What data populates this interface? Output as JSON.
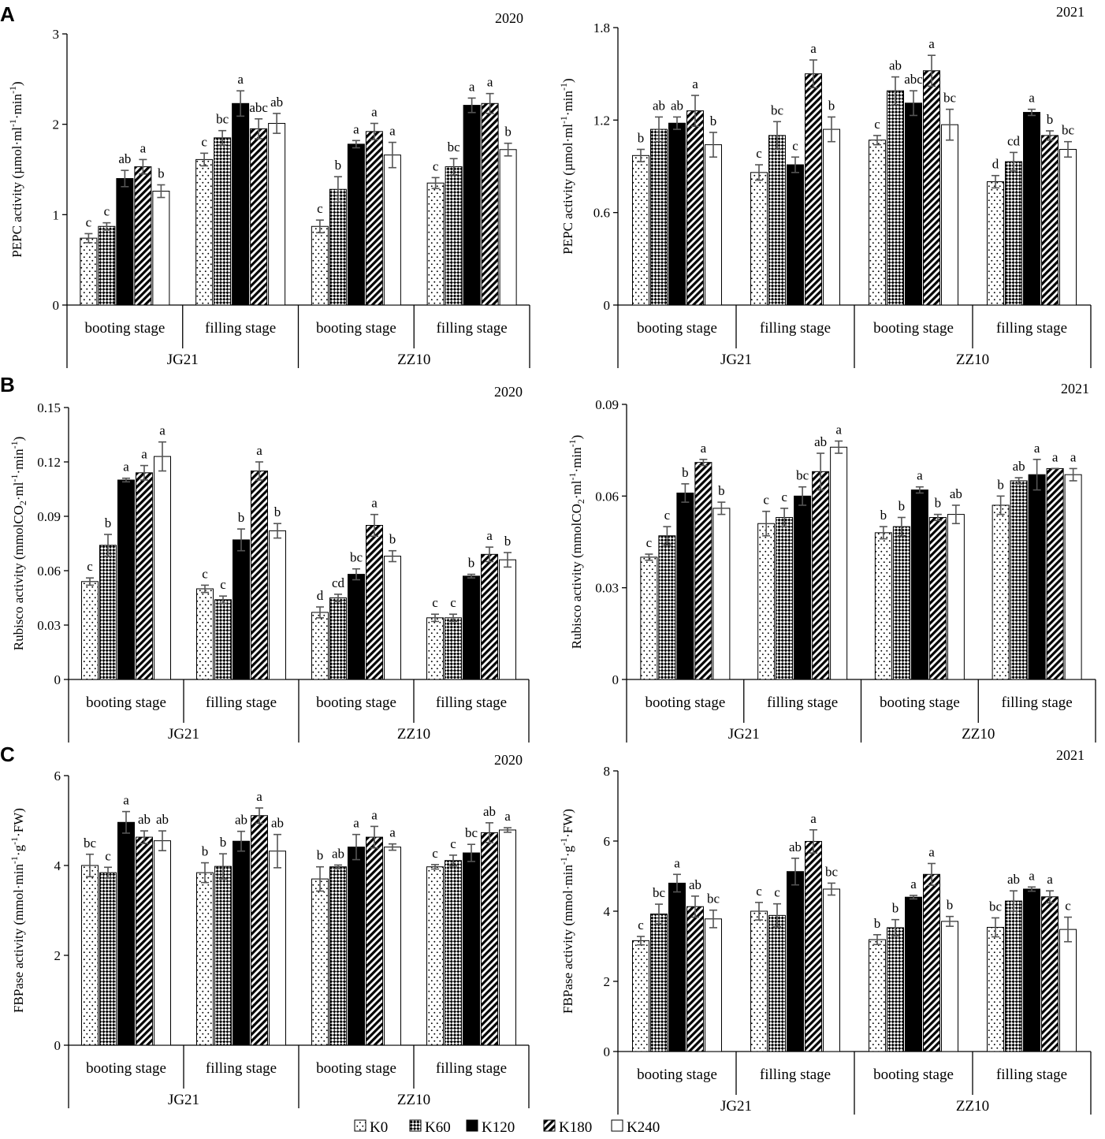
{
  "colors": {
    "axis": "#000000",
    "error_bar": "#555555",
    "background": "#ffffff"
  },
  "series_styles": [
    {
      "name": "K0",
      "pattern": "dots"
    },
    {
      "name": "K60",
      "pattern": "checker"
    },
    {
      "name": "K120",
      "pattern": "solid-black"
    },
    {
      "name": "K180",
      "pattern": "diagonal-stripes"
    },
    {
      "name": "K240",
      "pattern": "white"
    }
  ],
  "legend": {
    "items": [
      "K0",
      "K60",
      "K120",
      "K180",
      "K240"
    ]
  },
  "chart_data": [
    {
      "panel": "A",
      "title": "2020",
      "type": "bar",
      "ylabel": {
        "main": "PEPC activity (µmol·ml",
        "s1": "-1",
        "m2": "·min",
        "s2": "-1",
        "tail": ")"
      },
      "ylim": [
        0,
        3
      ],
      "yticks": [
        "0",
        "1",
        "2",
        "3"
      ],
      "stages": [
        "booting stage",
        "filling stage",
        "booting stage",
        "filling stage"
      ],
      "cultivars": [
        "JG21",
        "ZZ10"
      ],
      "series_names": [
        "K0",
        "K60",
        "K120",
        "K180",
        "K240"
      ],
      "groups": [
        {
          "values": [
            0.74,
            0.87,
            1.4,
            1.53,
            1.26
          ],
          "errors": [
            0.05,
            0.04,
            0.09,
            0.08,
            0.07
          ],
          "letters": [
            "c",
            "c",
            "ab",
            "a",
            "b"
          ]
        },
        {
          "values": [
            1.61,
            1.85,
            2.23,
            1.95,
            2.01
          ],
          "errors": [
            0.07,
            0.08,
            0.14,
            0.11,
            0.11
          ],
          "letters": [
            "c",
            "bc",
            "a",
            "abc",
            "ab"
          ]
        },
        {
          "values": [
            0.87,
            1.28,
            1.78,
            1.92,
            1.66
          ],
          "errors": [
            0.07,
            0.14,
            0.04,
            0.09,
            0.14
          ],
          "letters": [
            "c",
            "b",
            "a",
            "a",
            "a"
          ]
        },
        {
          "values": [
            1.35,
            1.53,
            2.21,
            2.23,
            1.72
          ],
          "errors": [
            0.06,
            0.09,
            0.08,
            0.11,
            0.07
          ],
          "letters": [
            "c",
            "bc",
            "a",
            "a",
            "b"
          ]
        }
      ]
    },
    {
      "panel": "",
      "title": "2021",
      "type": "bar",
      "ylabel": {
        "main": "PEPC activity (µmol·ml",
        "s1": "-1",
        "m2": "·min",
        "s2": "-1",
        "tail": ")"
      },
      "ylim": [
        0,
        1.8
      ],
      "yticks": [
        "0",
        "0.6",
        "1.2",
        "1.8"
      ],
      "stages": [
        "booting stage",
        "filling stage",
        "booting stage",
        "filling stage"
      ],
      "cultivars": [
        "JG21",
        "ZZ10"
      ],
      "series_names": [
        "K0",
        "K60",
        "K120",
        "K180",
        "K240"
      ],
      "groups": [
        {
          "values": [
            0.97,
            1.14,
            1.18,
            1.26,
            1.04
          ],
          "errors": [
            0.04,
            0.08,
            0.04,
            0.1,
            0.08
          ],
          "letters": [
            "b",
            "ab",
            "ab",
            "a",
            "b"
          ]
        },
        {
          "values": [
            0.86,
            1.1,
            0.91,
            1.5,
            1.14
          ],
          "errors": [
            0.05,
            0.09,
            0.05,
            0.09,
            0.08
          ],
          "letters": [
            "c",
            "bc",
            "c",
            "a",
            "b"
          ]
        },
        {
          "values": [
            1.07,
            1.39,
            1.31,
            1.52,
            1.17
          ],
          "errors": [
            0.03,
            0.09,
            0.08,
            0.1,
            0.1
          ],
          "letters": [
            "c",
            "ab",
            "abc",
            "a",
            "bc"
          ]
        },
        {
          "values": [
            0.8,
            0.93,
            1.25,
            1.1,
            1.01
          ],
          "errors": [
            0.04,
            0.06,
            0.02,
            0.03,
            0.05
          ],
          "letters": [
            "d",
            "cd",
            "a",
            "b",
            "bc"
          ]
        }
      ]
    },
    {
      "panel": "B",
      "title": "2020",
      "type": "bar",
      "ylabel": {
        "main": "Rubisco activity (mmolCO",
        "sub": "2",
        "m1": "·ml",
        "s1": "-1",
        "m2": "·min",
        "s2": "-1",
        "tail": ")"
      },
      "ylim": [
        0,
        0.15
      ],
      "yticks": [
        "0",
        "0.03",
        "0.06",
        "0.09",
        "0.12",
        "0.15"
      ],
      "stages": [
        "booting stage",
        "filling stage",
        "booting stage",
        "filling stage"
      ],
      "cultivars": [
        "JG21",
        "ZZ10"
      ],
      "series_names": [
        "K0",
        "K60",
        "K120",
        "K180",
        "K240"
      ],
      "groups": [
        {
          "values": [
            0.054,
            0.074,
            0.11,
            0.114,
            0.123
          ],
          "errors": [
            0.002,
            0.006,
            0.001,
            0.004,
            0.008
          ],
          "letters": [
            "c",
            "b",
            "a",
            "a",
            "a"
          ]
        },
        {
          "values": [
            0.05,
            0.044,
            0.077,
            0.115,
            0.082
          ],
          "errors": [
            0.002,
            0.002,
            0.006,
            0.005,
            0.004
          ],
          "letters": [
            "c",
            "c",
            "b",
            "a",
            "b"
          ]
        },
        {
          "values": [
            0.037,
            0.045,
            0.058,
            0.085,
            0.068
          ],
          "errors": [
            0.003,
            0.002,
            0.003,
            0.006,
            0.003
          ],
          "letters": [
            "d",
            "cd",
            "bc",
            "a",
            "b"
          ]
        },
        {
          "values": [
            0.034,
            0.034,
            0.057,
            0.069,
            0.066
          ],
          "errors": [
            0.002,
            0.002,
            0.001,
            0.004,
            0.004
          ],
          "letters": [
            "c",
            "c",
            "b",
            "a",
            "b"
          ]
        }
      ]
    },
    {
      "panel": "",
      "title": "2021",
      "type": "bar",
      "ylabel": {
        "main": "Rubisco activity (mmolCO",
        "sub": "2",
        "m1": "·ml",
        "s1": "-1",
        "m2": "·min",
        "s2": "-1",
        "tail": ")"
      },
      "ylim": [
        0,
        0.09
      ],
      "yticks": [
        "0",
        "0.03",
        "0.06",
        "0.09"
      ],
      "stages": [
        "booting stage",
        "filling stage",
        "booting stage",
        "filling stage"
      ],
      "cultivars": [
        "JG21",
        "ZZ10"
      ],
      "series_names": [
        "K0",
        "K60",
        "K120",
        "K180",
        "K240"
      ],
      "groups": [
        {
          "values": [
            0.04,
            0.047,
            0.061,
            0.071,
            0.056
          ],
          "errors": [
            0.001,
            0.003,
            0.003,
            0.001,
            0.002
          ],
          "letters": [
            "c",
            "c",
            "b",
            "a",
            "b"
          ]
        },
        {
          "values": [
            0.051,
            0.053,
            0.06,
            0.068,
            0.076
          ],
          "errors": [
            0.004,
            0.003,
            0.003,
            0.006,
            0.002
          ],
          "letters": [
            "c",
            "c",
            "bc",
            "ab",
            "a"
          ]
        },
        {
          "values": [
            0.048,
            0.05,
            0.062,
            0.053,
            0.054
          ],
          "errors": [
            0.002,
            0.003,
            0.001,
            0.001,
            0.003
          ],
          "letters": [
            "b",
            "b",
            "a",
            "b",
            "ab"
          ]
        },
        {
          "values": [
            0.057,
            0.065,
            0.067,
            0.069,
            0.067
          ],
          "errors": [
            0.003,
            0.001,
            0.005,
            0.0,
            0.002
          ],
          "letters": [
            "b",
            "ab",
            "a",
            "a",
            "a"
          ]
        }
      ]
    },
    {
      "panel": "C",
      "title": "2020",
      "type": "bar",
      "ylabel": {
        "main": "FBPase activity (mmol·min",
        "s1": "-1",
        "m2": "·g",
        "s2": "-1",
        "tail": "·FW)"
      },
      "ylim": [
        0,
        6
      ],
      "yticks": [
        "0",
        "2",
        "4",
        "6"
      ],
      "stages": [
        "booting stage",
        "filling stage",
        "booting stage",
        "filling stage"
      ],
      "cultivars": [
        "JG21",
        "ZZ10"
      ],
      "series_names": [
        "K0",
        "K60",
        "K120",
        "K180",
        "K240"
      ],
      "groups": [
        {
          "values": [
            4.0,
            3.84,
            4.96,
            4.63,
            4.55
          ],
          "errors": [
            0.25,
            0.12,
            0.24,
            0.14,
            0.22
          ],
          "letters": [
            "bc",
            "c",
            "a",
            "ab",
            "ab"
          ]
        },
        {
          "values": [
            3.84,
            3.98,
            4.54,
            5.11,
            4.32
          ],
          "errors": [
            0.22,
            0.28,
            0.22,
            0.17,
            0.37
          ],
          "letters": [
            "b",
            "b",
            "ab",
            "a",
            "ab"
          ]
        },
        {
          "values": [
            3.7,
            3.97,
            4.41,
            4.63,
            4.41
          ],
          "errors": [
            0.27,
            0.04,
            0.28,
            0.24,
            0.07
          ],
          "letters": [
            "b",
            "ab",
            "a",
            "a",
            "a"
          ]
        },
        {
          "values": [
            3.97,
            4.11,
            4.28,
            4.73,
            4.79
          ],
          "errors": [
            0.05,
            0.12,
            0.19,
            0.22,
            0.05
          ],
          "letters": [
            "c",
            "c",
            "bc",
            "ab",
            "a"
          ]
        }
      ]
    },
    {
      "panel": "",
      "title": "2021",
      "type": "bar",
      "ylabel": {
        "main": "FBPase activity (mmol·min",
        "s1": "-1",
        "m2": "·g",
        "s2": "-1",
        "tail": "·FW)"
      },
      "ylim": [
        0,
        8
      ],
      "yticks": [
        "0",
        "2",
        "4",
        "6",
        "8"
      ],
      "stages": [
        "booting stage",
        "filling stage",
        "booting stage",
        "filling stage"
      ],
      "cultivars": [
        "JG21",
        "ZZ10"
      ],
      "series_names": [
        "K0",
        "K60",
        "K120",
        "K180",
        "K240"
      ],
      "groups": [
        {
          "values": [
            3.16,
            3.92,
            4.8,
            4.13,
            3.78
          ],
          "errors": [
            0.12,
            0.28,
            0.25,
            0.3,
            0.25
          ],
          "letters": [
            "c",
            "bc",
            "a",
            "ab",
            "bc"
          ]
        },
        {
          "values": [
            4.0,
            3.88,
            5.13,
            5.99,
            4.63
          ],
          "errors": [
            0.25,
            0.33,
            0.38,
            0.33,
            0.17
          ],
          "letters": [
            "c",
            "c",
            "ab",
            "a",
            "bc"
          ]
        },
        {
          "values": [
            3.19,
            3.53,
            4.4,
            5.05,
            3.71
          ],
          "errors": [
            0.14,
            0.23,
            0.05,
            0.31,
            0.14
          ],
          "letters": [
            "b",
            "b",
            "a",
            "a",
            "b"
          ]
        },
        {
          "values": [
            3.54,
            4.29,
            4.63,
            4.41,
            3.48
          ],
          "errors": [
            0.27,
            0.29,
            0.06,
            0.17,
            0.35
          ],
          "letters": [
            "bc",
            "ab",
            "a",
            "a",
            "c"
          ]
        }
      ]
    }
  ]
}
